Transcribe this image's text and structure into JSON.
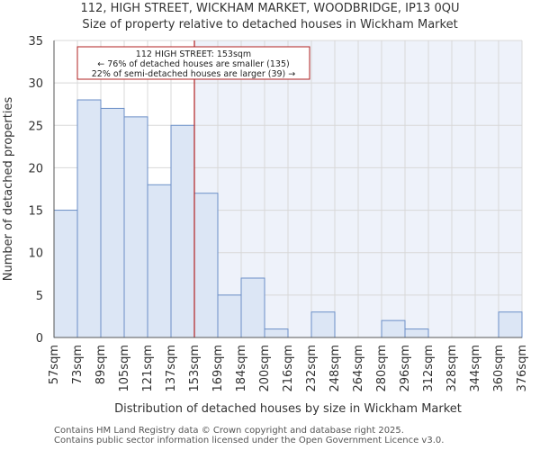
{
  "title_line1": "112, HIGH STREET, WICKHAM MARKET, WOODBRIDGE, IP13 0QU",
  "title_line2": "Size of property relative to detached houses in Wickham Market",
  "footer_line1": "Contains HM Land Registry data © Crown copyright and database right 2025.",
  "footer_line2": "Contains public sector information licensed under the Open Government Licence v3.0.",
  "colors": {
    "bar_fill": "#dce6f5",
    "bar_stroke": "#6b8fc7",
    "marker": "#b22222",
    "grid": "#d8d8d8",
    "shade": "#eef2fa"
  },
  "chart_data": {
    "type": "bar",
    "title": "Size of property relative to detached houses in Wickham Market",
    "xlabel": "Distribution of detached houses by size in Wickham Market",
    "ylabel": "Number of detached properties",
    "ylim": [
      0,
      35
    ],
    "yticks": [
      0,
      5,
      10,
      15,
      20,
      25,
      30,
      35
    ],
    "bin_edges": [
      "57sqm",
      "73sqm",
      "89sqm",
      "105sqm",
      "121sqm",
      "137sqm",
      "153sqm",
      "169sqm",
      "184sqm",
      "200sqm",
      "216sqm",
      "232sqm",
      "248sqm",
      "264sqm",
      "280sqm",
      "296sqm",
      "312sqm",
      "328sqm",
      "344sqm",
      "360sqm",
      "376sqm"
    ],
    "values": [
      15,
      28,
      27,
      26,
      18,
      25,
      17,
      5,
      7,
      1,
      0,
      3,
      0,
      0,
      2,
      1,
      0,
      0,
      0,
      3
    ],
    "marker_index": 6,
    "annotation": {
      "line1": "112 HIGH STREET: 153sqm",
      "line2": "← 76% of detached houses are smaller (135)",
      "line3": "22% of semi-detached houses are larger (39) →"
    },
    "grid": true
  }
}
